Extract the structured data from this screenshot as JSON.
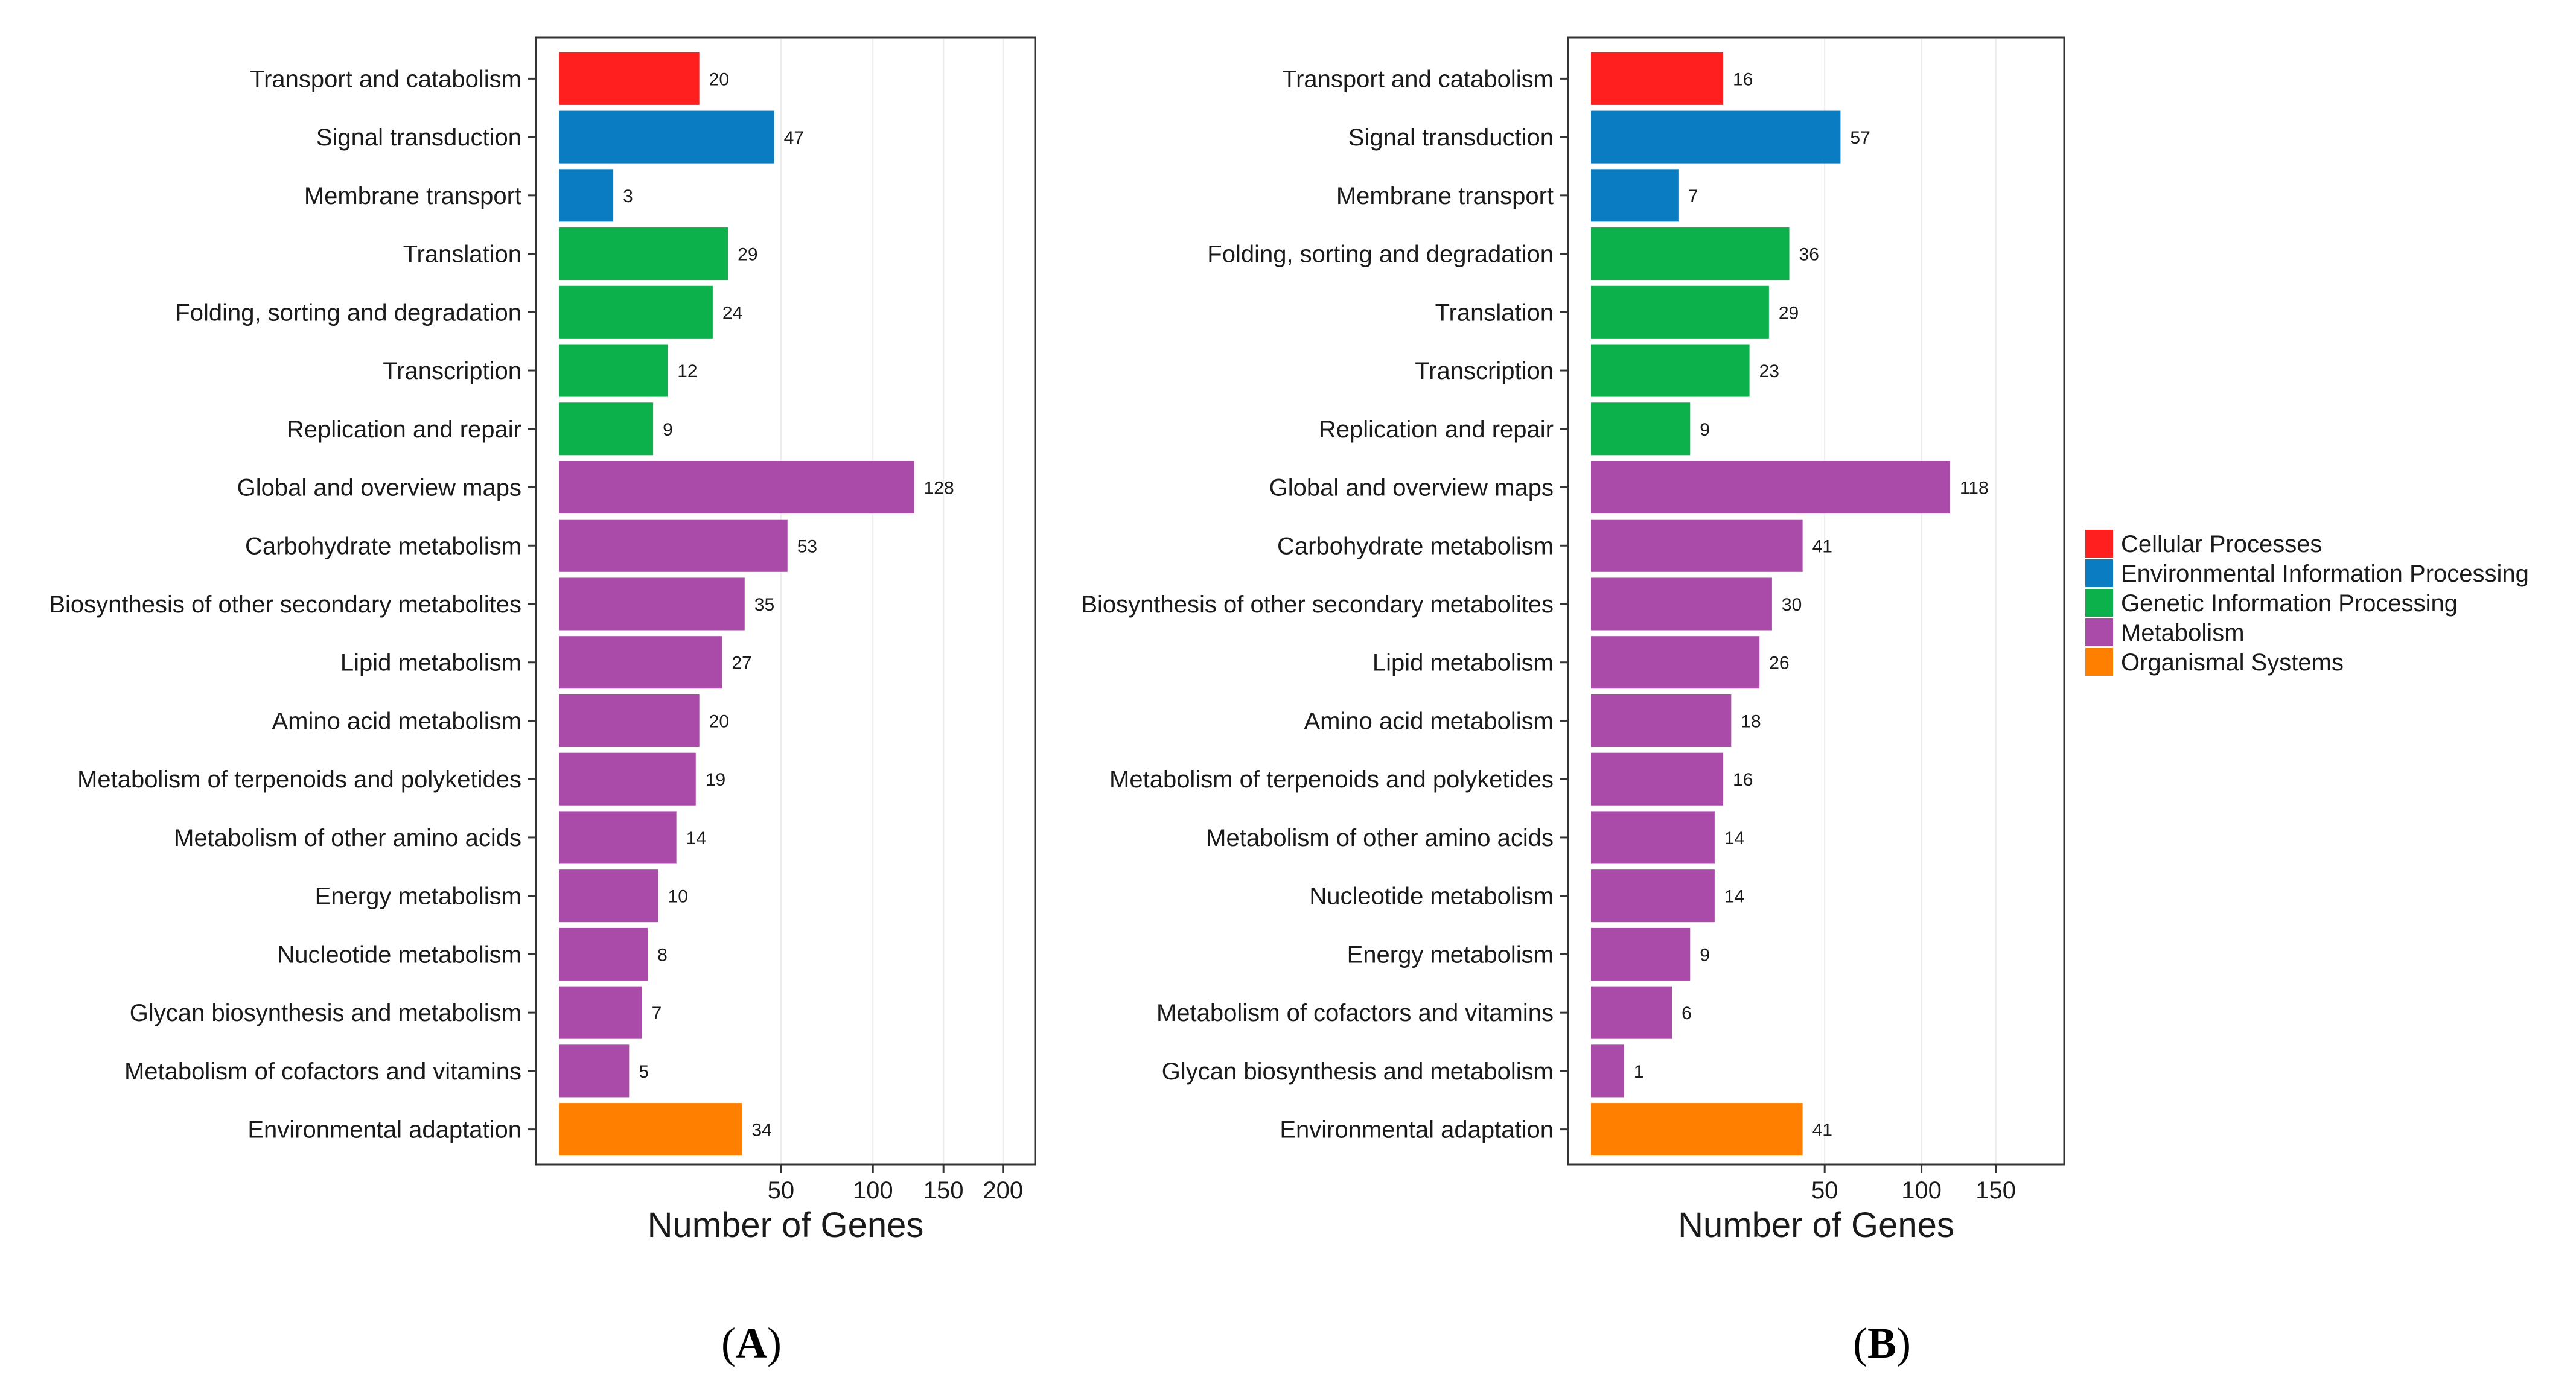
{
  "colors": {
    "Cellular Processes": "#FF1F1F",
    "Environmental Information Processing": "#0A7DC2",
    "Genetic Information Processing": "#0CB14B",
    "Metabolism": "#AA4BAA",
    "Organismal Systems": "#FF8000"
  },
  "legend": {
    "items": [
      "Cellular Processes",
      "Environmental Information Processing",
      "Genetic Information Processing",
      "Metabolism",
      "Organismal Systems"
    ]
  },
  "chart_data": [
    {
      "type": "bar",
      "orientation": "horizontal",
      "panel": "A",
      "panel_label": [
        "(",
        "A",
        ")"
      ],
      "xlabel": "Number of Genes",
      "ylabel": "",
      "x_scale": "sqrt",
      "xlim": [
        0,
        230
      ],
      "xticks": [
        50,
        100,
        150,
        200
      ],
      "grid": true,
      "categories": [
        "Transport and catabolism",
        "Signal transduction",
        "Membrane transport",
        "Translation",
        "Folding, sorting and degradation",
        "Transcription",
        "Replication and repair",
        "Global and overview maps",
        "Carbohydrate metabolism",
        "Biosynthesis of other secondary metabolites",
        "Lipid metabolism",
        "Amino acid metabolism",
        "Metabolism of terpenoids and polyketides",
        "Metabolism of other amino acids",
        "Energy metabolism",
        "Nucleotide metabolism",
        "Glycan biosynthesis and metabolism",
        "Metabolism of cofactors and vitamins",
        "Environmental adaptation"
      ],
      "values": [
        20,
        47,
        3,
        29,
        24,
        12,
        9,
        128,
        53,
        35,
        27,
        20,
        19,
        14,
        10,
        8,
        7,
        5,
        34
      ],
      "groups": [
        "Cellular Processes",
        "Environmental Information Processing",
        "Environmental Information Processing",
        "Genetic Information Processing",
        "Genetic Information Processing",
        "Genetic Information Processing",
        "Genetic Information Processing",
        "Metabolism",
        "Metabolism",
        "Metabolism",
        "Metabolism",
        "Metabolism",
        "Metabolism",
        "Metabolism",
        "Metabolism",
        "Metabolism",
        "Metabolism",
        "Metabolism",
        "Organismal Systems"
      ]
    },
    {
      "type": "bar",
      "orientation": "horizontal",
      "panel": "B",
      "panel_label": [
        "(",
        "B",
        ")"
      ],
      "xlabel": "Number of Genes",
      "ylabel": "",
      "x_scale": "sqrt",
      "xlim": [
        0,
        205
      ],
      "xticks": [
        50,
        100,
        150
      ],
      "grid": true,
      "categories": [
        "Transport and catabolism",
        "Signal transduction",
        "Membrane transport",
        "Folding, sorting and degradation",
        "Translation",
        "Transcription",
        "Replication and repair",
        "Global and overview maps",
        "Carbohydrate metabolism",
        "Biosynthesis of other secondary metabolites",
        "Lipid metabolism",
        "Amino acid metabolism",
        "Metabolism of terpenoids and polyketides",
        "Metabolism of other amino acids",
        "Nucleotide metabolism",
        "Energy metabolism",
        "Metabolism of cofactors and vitamins",
        "Glycan biosynthesis and metabolism",
        "Environmental adaptation"
      ],
      "values": [
        16,
        57,
        7,
        36,
        29,
        23,
        9,
        118,
        41,
        30,
        26,
        18,
        16,
        14,
        14,
        9,
        6,
        1,
        41
      ],
      "groups": [
        "Cellular Processes",
        "Environmental Information Processing",
        "Environmental Information Processing",
        "Genetic Information Processing",
        "Genetic Information Processing",
        "Genetic Information Processing",
        "Genetic Information Processing",
        "Metabolism",
        "Metabolism",
        "Metabolism",
        "Metabolism",
        "Metabolism",
        "Metabolism",
        "Metabolism",
        "Metabolism",
        "Metabolism",
        "Metabolism",
        "Metabolism",
        "Organismal Systems"
      ]
    }
  ]
}
